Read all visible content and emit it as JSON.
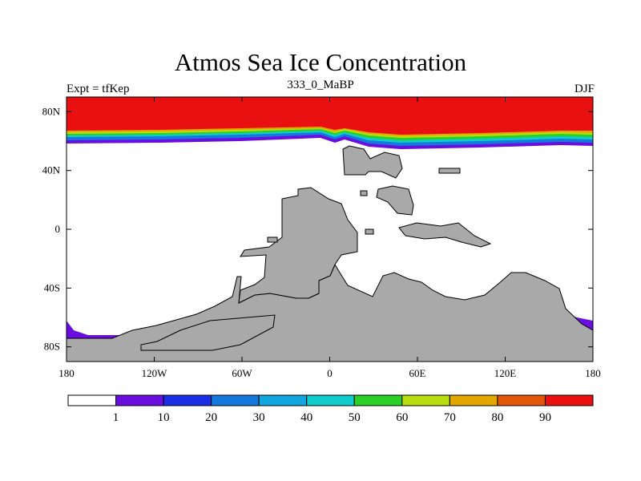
{
  "figure": {
    "title": "Atmos Sea Ice Concentration",
    "left_label": "Expt = tfKep",
    "center_label": "333_0_MaBP",
    "right_label": "DJF"
  },
  "axes": {
    "lon_ticks": [
      {
        "value": -180,
        "label": "180"
      },
      {
        "value": -120,
        "label": "120W"
      },
      {
        "value": -60,
        "label": "60W"
      },
      {
        "value": 0,
        "label": "0"
      },
      {
        "value": 60,
        "label": "60E"
      },
      {
        "value": 120,
        "label": "120E"
      },
      {
        "value": 180,
        "label": "180"
      }
    ],
    "lat_ticks": [
      {
        "value": 80,
        "label": "80N"
      },
      {
        "value": 40,
        "label": "40N"
      },
      {
        "value": 0,
        "label": "0"
      },
      {
        "value": -40,
        "label": "40S"
      },
      {
        "value": -80,
        "label": "80S"
      }
    ],
    "lon_range": [
      -180,
      180
    ],
    "lat_range": [
      -90,
      90
    ]
  },
  "colorbar": {
    "colors": [
      "#ffffff",
      "#6a0ee0",
      "#1a2ee6",
      "#1478dc",
      "#12a6e0",
      "#10cccc",
      "#28d028",
      "#b8de10",
      "#e2a800",
      "#e25808",
      "#e81010"
    ],
    "labels": [
      "1",
      "10",
      "20",
      "30",
      "40",
      "50",
      "60",
      "70",
      "80",
      "90"
    ]
  },
  "map_colors": {
    "land": "#a9a9a9",
    "land_edge": "#000000",
    "ocean": "#ffffff"
  }
}
